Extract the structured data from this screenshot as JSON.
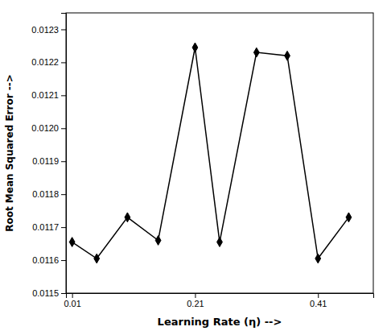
{
  "chart_data": {
    "type": "line",
    "x": [
      0.01,
      0.05,
      0.1,
      0.15,
      0.21,
      0.25,
      0.31,
      0.36,
      0.41,
      0.46
    ],
    "values": [
      0.011655,
      0.011605,
      0.01173,
      0.01166,
      0.012245,
      0.011655,
      0.01223,
      0.01222,
      0.011605,
      0.01173
    ],
    "color": "#000000",
    "marker": "diamond",
    "xlabel": "Learning Rate (η) -->",
    "ylabel": "Root Mean Squared Error -->",
    "xlim": [
      0.0,
      0.5
    ],
    "ylim": [
      0.0115,
      0.01235
    ],
    "xticks": [
      0.01,
      0.21,
      0.41
    ],
    "yticks": [
      0.0115,
      0.0116,
      0.0117,
      0.0118,
      0.0119,
      {
        "value": 0.012,
        "label": "0.0120"
      },
      0.0121,
      0.0122,
      0.0123
    ],
    "grid": false
  }
}
